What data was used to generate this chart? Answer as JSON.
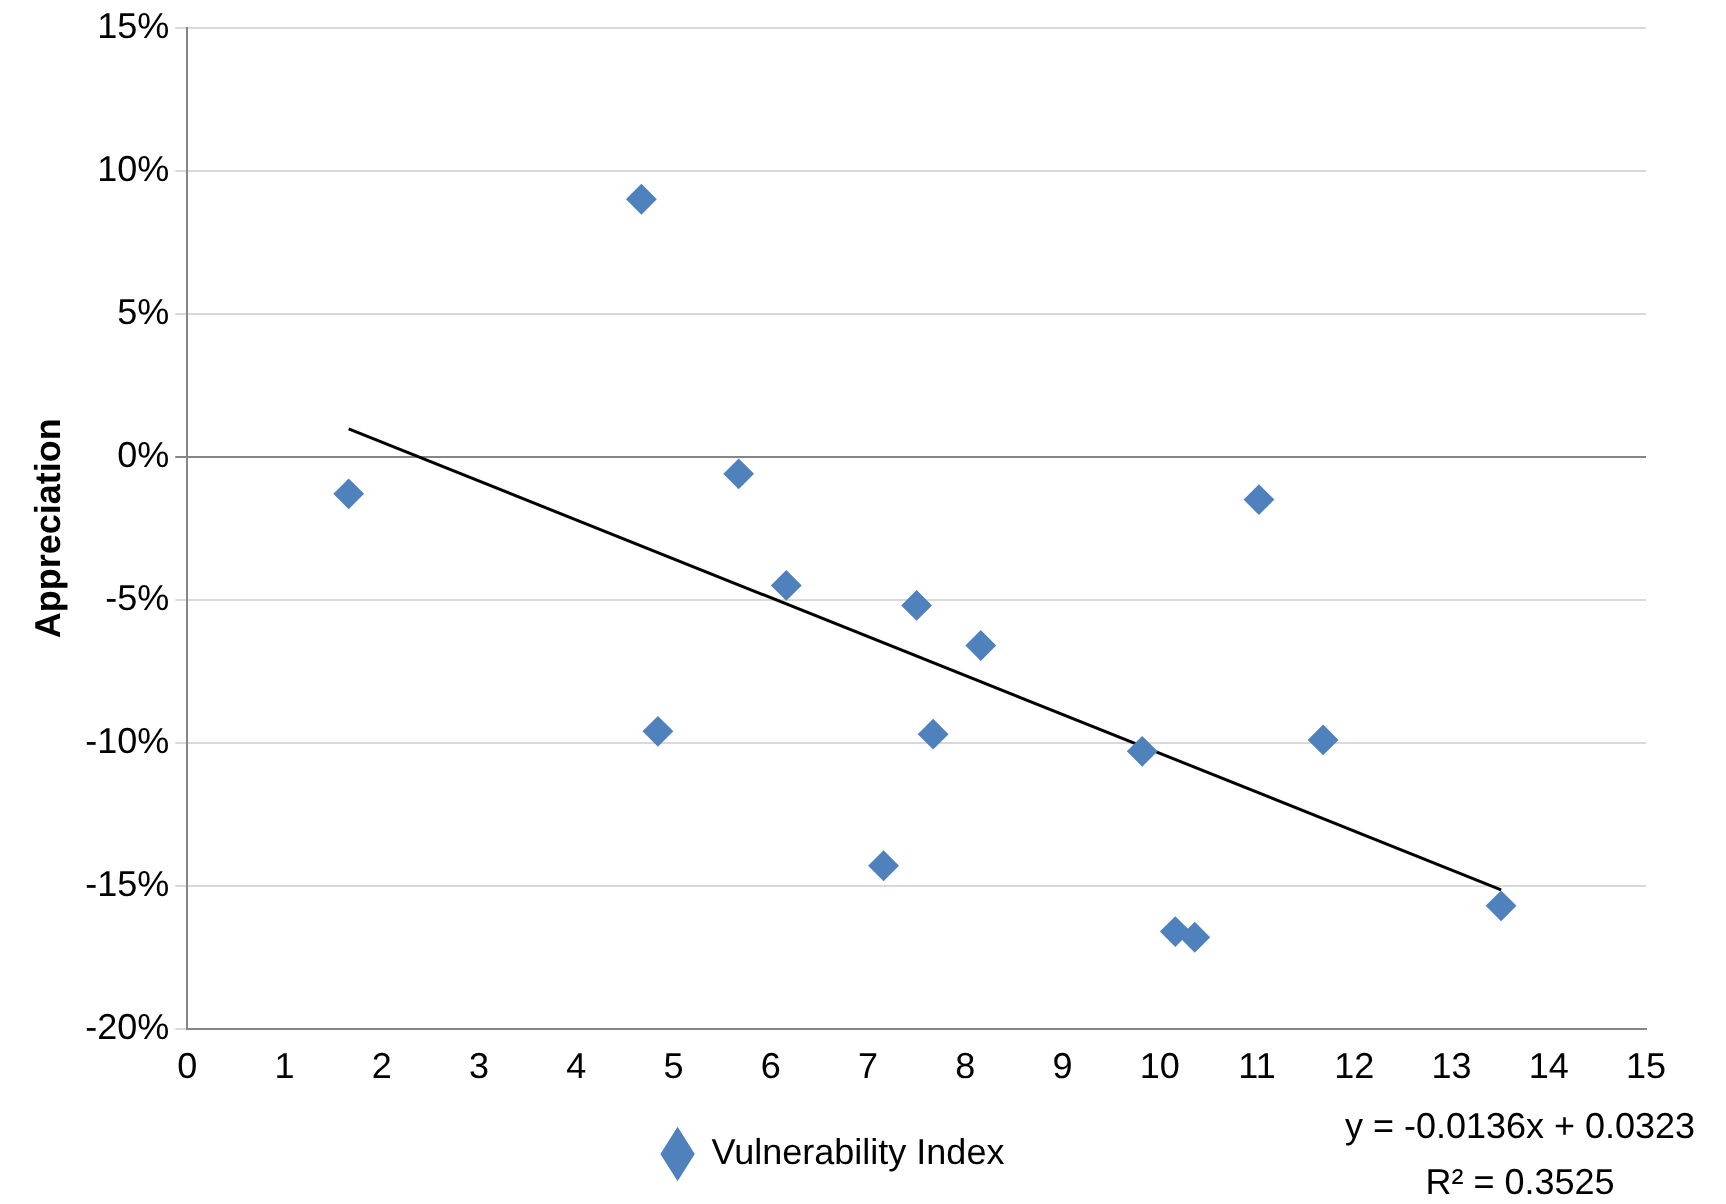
{
  "chart_data": {
    "type": "scatter",
    "ylabel": "Appreciation",
    "marker": "diamond",
    "grid": "y",
    "legend": "bottom",
    "xlim": [
      0,
      15
    ],
    "xticks": [
      0,
      1,
      2,
      3,
      4,
      5,
      6,
      7,
      8,
      9,
      10,
      11,
      12,
      13,
      14,
      15
    ],
    "ylim": [
      -20,
      15
    ],
    "yticks": [
      {
        "value": -20,
        "label": "-20%"
      },
      {
        "value": -15,
        "label": "-15%"
      },
      {
        "value": -10,
        "label": "-10%"
      },
      {
        "value": -5,
        "label": "-5%"
      },
      {
        "value": 0,
        "label": "0%"
      },
      {
        "value": 5,
        "label": "5%"
      },
      {
        "value": 10,
        "label": "10%"
      },
      {
        "value": 15,
        "label": "15%"
      }
    ],
    "series": [
      {
        "name": "Vulnerability Index",
        "color": "#4f81bd",
        "x": [
          1.66,
          4.67,
          4.84,
          5.67,
          6.16,
          7.16,
          7.5,
          7.67,
          8.16,
          9.82,
          10.16,
          10.36,
          11.02,
          11.68,
          13.51
        ],
        "values": [
          -1.3,
          9.0,
          -9.6,
          -0.6,
          -4.5,
          -14.3,
          -5.2,
          -9.7,
          -6.6,
          -10.3,
          -16.6,
          -16.8,
          -1.5,
          -9.9,
          -15.7
        ]
      },
      {
        "type": "line",
        "color": "#000000",
        "marker": "none",
        "x": [
          1.66,
          13.51
        ],
        "values": [
          0.97,
          -15.14
        ]
      }
    ],
    "annotations": [
      "y = -0.0136x + 0.0323",
      "R² = 0.3525"
    ]
  }
}
